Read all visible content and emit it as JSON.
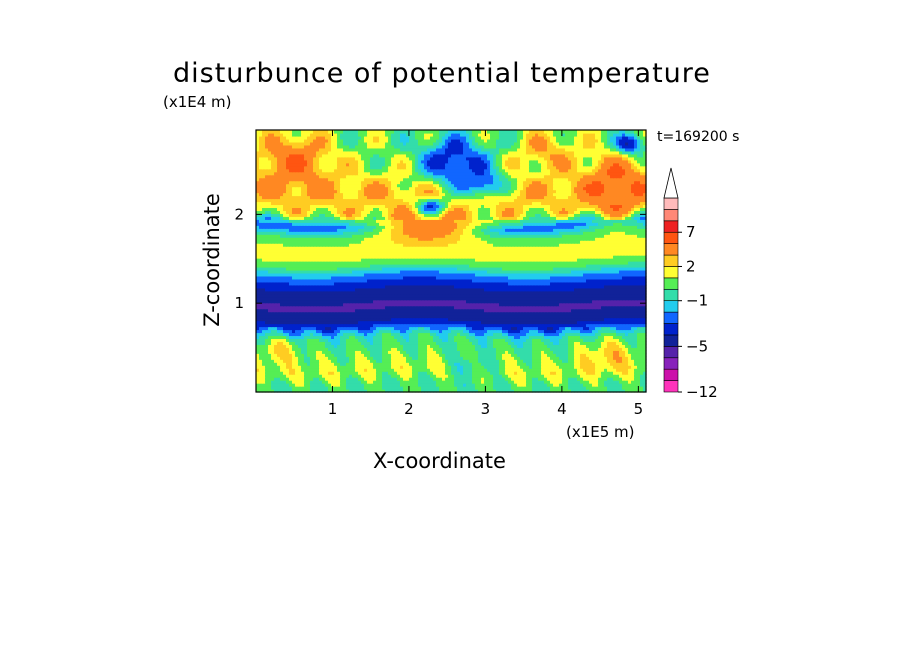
{
  "chart_data": {
    "type": "heatmap",
    "title": "disturbunce of potential temperature",
    "xlabel": "X-coordinate",
    "ylabel": "Z-coordinate",
    "x_unit": "(x1E5 m)",
    "y_unit": "(x1E4 m)",
    "time_label": "t=169200 s",
    "xlim": [
      0,
      5.1
    ],
    "ylim": [
      0,
      2.95
    ],
    "x_ticks": [
      1,
      2,
      3,
      4,
      5
    ],
    "y_ticks": [
      1,
      2
    ],
    "colorbar": {
      "extend_max": true,
      "levels": [
        -12,
        -10,
        -8,
        -6,
        -5,
        -4,
        -3,
        -2,
        -1,
        0,
        1,
        2,
        3,
        5,
        7,
        9,
        11
      ],
      "colors": [
        "#ff33bb",
        "#cc11aa",
        "#8822bb",
        "#5522aa",
        "#112299",
        "#0022cc",
        "#1166ff",
        "#22ccee",
        "#33ddaa",
        "#55ee55",
        "#ffff33",
        "#ffcc22",
        "#ff8822",
        "#ff5511",
        "#ee2222",
        "#ff8877",
        "#ffbbbb"
      ],
      "tick_labels": [
        {
          "value": -12,
          "label": "−12"
        },
        {
          "value": -5,
          "label": "−5"
        },
        {
          "value": -1,
          "label": "−1"
        },
        {
          "value": 2,
          "label": "2"
        },
        {
          "value": 7,
          "label": "7"
        }
      ]
    },
    "bands": [
      {
        "z": 0.08,
        "value": 0
      },
      {
        "z": 0.25,
        "value": 1.2
      },
      {
        "z": 0.45,
        "value": 0.3
      },
      {
        "z": 0.62,
        "value": -0.5
      },
      {
        "z": 0.82,
        "value": -4.5
      },
      {
        "z": 0.98,
        "value": -5.2
      },
      {
        "z": 1.15,
        "value": -4.2
      },
      {
        "z": 1.3,
        "value": -2.5
      },
      {
        "z": 1.45,
        "value": 0.6
      },
      {
        "z": 1.6,
        "value": 1.8
      },
      {
        "z": 1.78,
        "value": 0.2
      },
      {
        "z": 1.9,
        "value": -3
      },
      {
        "z": 2.05,
        "value": 1.5
      },
      {
        "z": 2.3,
        "value": 2.8
      },
      {
        "z": 2.55,
        "value": 1.2
      },
      {
        "z": 2.8,
        "value": 0.5
      }
    ],
    "blobs": [
      {
        "x": 2.25,
        "z": 1.85,
        "rx": 0.9,
        "rz": 0.25,
        "value": 4.5
      },
      {
        "x": 0.5,
        "z": 2.6,
        "rx": 0.6,
        "rz": 0.4,
        "value": 4.8
      },
      {
        "x": 4.7,
        "z": 2.3,
        "rx": 0.5,
        "rz": 0.45,
        "value": 5.5
      },
      {
        "x": 3.8,
        "z": 2.7,
        "rx": 0.5,
        "rz": 0.3,
        "value": 3
      },
      {
        "x": 2.6,
        "z": 2.6,
        "rx": 0.55,
        "rz": 0.35,
        "value": -4
      },
      {
        "x": 2.95,
        "z": 2.35,
        "rx": 0.35,
        "rz": 0.2,
        "value": -3.5
      },
      {
        "x": 2.3,
        "z": 2.1,
        "rx": 0.25,
        "rz": 0.12,
        "value": -2.5
      },
      {
        "x": 4.9,
        "z": 2.8,
        "rx": 0.25,
        "rz": 0.15,
        "value": -4
      },
      {
        "x": 4.6,
        "z": 0.4,
        "rx": 0.45,
        "rz": 0.25,
        "value": 2.5
      },
      {
        "x": 0.3,
        "z": 0.45,
        "rx": 0.4,
        "rz": 0.2,
        "value": 2
      },
      {
        "x": 2.8,
        "z": 0.3,
        "rx": 0.35,
        "rz": 0.2,
        "value": -0.8
      }
    ]
  }
}
